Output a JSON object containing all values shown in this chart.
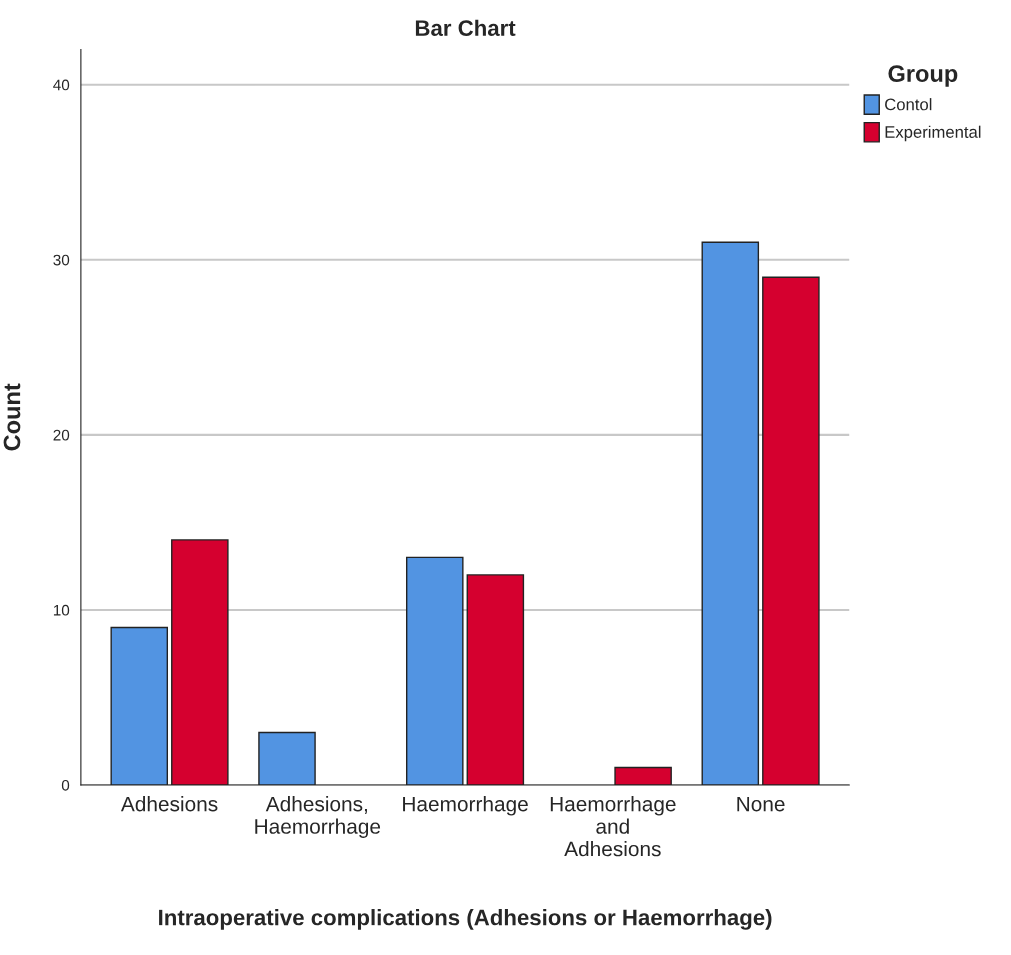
{
  "chart_data": {
    "type": "bar",
    "title": "Bar Chart",
    "xlabel": "Intraoperative complications (Adhesions or Haemorrhage)",
    "ylabel": "Count",
    "legend_title": "Group",
    "categories": [
      "Adhesions",
      "Adhesions,\nHaemorrhage",
      "Haemorrhage",
      "Haemorrhage\nand\nAdhesions",
      "None"
    ],
    "series": [
      {
        "name": "Contol",
        "color": "#5294e2",
        "values": [
          9,
          3,
          13,
          null,
          31
        ]
      },
      {
        "name": "Experimental",
        "color": "#d5002f",
        "values": [
          14,
          null,
          12,
          1,
          29
        ]
      }
    ],
    "ylim": [
      0,
      42
    ],
    "yticks": [
      0,
      10,
      20,
      30,
      40
    ],
    "grid": "y",
    "legend": "top right"
  }
}
